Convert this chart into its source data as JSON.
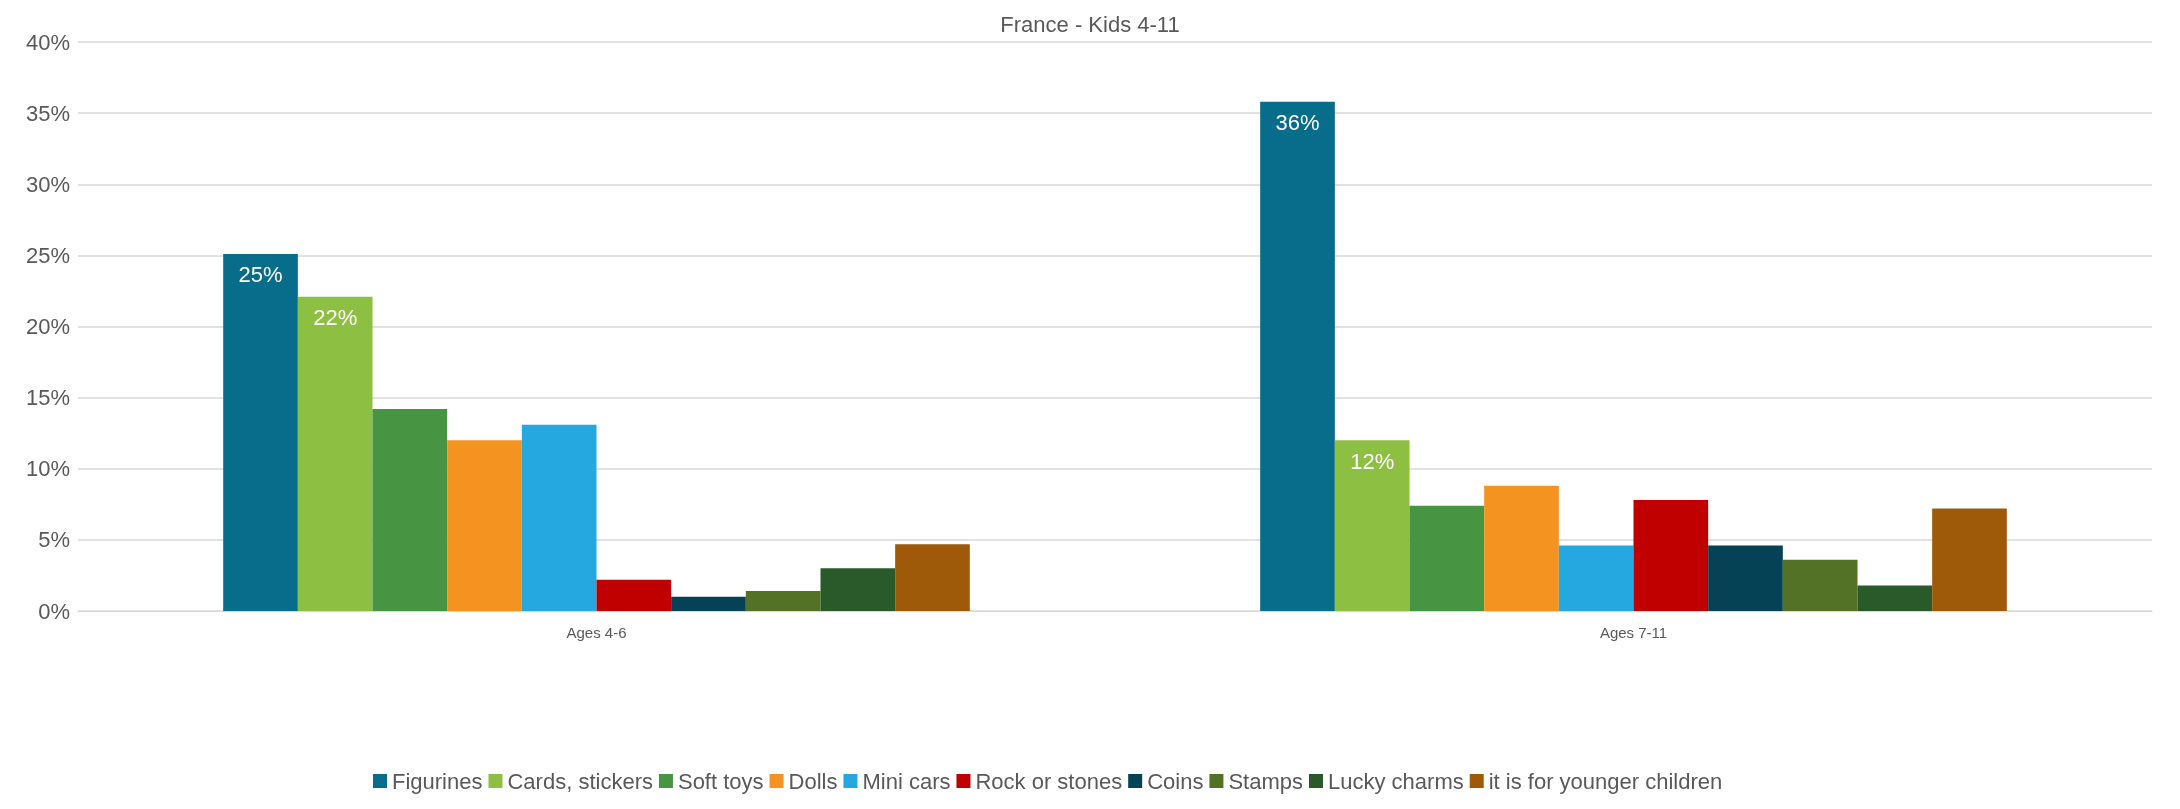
{
  "chart_data": {
    "type": "bar",
    "title": "France - Kids 4-11",
    "categories": [
      "Ages 4-6",
      "Ages 7-11"
    ],
    "series": [
      {
        "name": "Figurines",
        "color": "#076d8a",
        "values": [
          25.1,
          35.8
        ],
        "value_labels": [
          "25%",
          "36%"
        ]
      },
      {
        "name": "Cards, stickers",
        "color": "#8dbf43",
        "values": [
          22.1,
          12.0
        ],
        "value_labels": [
          "22%",
          "12%"
        ]
      },
      {
        "name": "Soft toys",
        "color": "#479442",
        "values": [
          14.2,
          7.4
        ]
      },
      {
        "name": "Dolls",
        "color": "#f59320",
        "values": [
          12.0,
          8.8
        ]
      },
      {
        "name": "Mini cars",
        "color": "#25a8e0",
        "values": [
          13.1,
          4.6
        ]
      },
      {
        "name": "Rock or stones",
        "color": "#c00000",
        "values": [
          2.2,
          7.8
        ]
      },
      {
        "name": "Coins",
        "color": "#064256",
        "values": [
          1.0,
          4.6
        ]
      },
      {
        "name": "Stamps",
        "color": "#537226",
        "values": [
          1.4,
          3.6
        ]
      },
      {
        "name": "Lucky charms",
        "color": "#2a5a2a",
        "values": [
          3.0,
          1.8
        ]
      },
      {
        "name": "it is for younger children",
        "color": "#9e5a08",
        "values": [
          4.7,
          7.2
        ]
      }
    ],
    "ylim": [
      0,
      40
    ],
    "yticks": [
      {
        "value": 0,
        "label": "0%"
      },
      {
        "value": 5,
        "label": "5%"
      },
      {
        "value": 10,
        "label": "10%"
      },
      {
        "value": 15,
        "label": "15%"
      },
      {
        "value": 20,
        "label": "20%"
      },
      {
        "value": 25,
        "label": "25%"
      },
      {
        "value": 30,
        "label": "30%"
      },
      {
        "value": 35,
        "label": "35%"
      },
      {
        "value": 40,
        "label": "40%"
      }
    ],
    "grid": "y",
    "legend": "bottom"
  }
}
